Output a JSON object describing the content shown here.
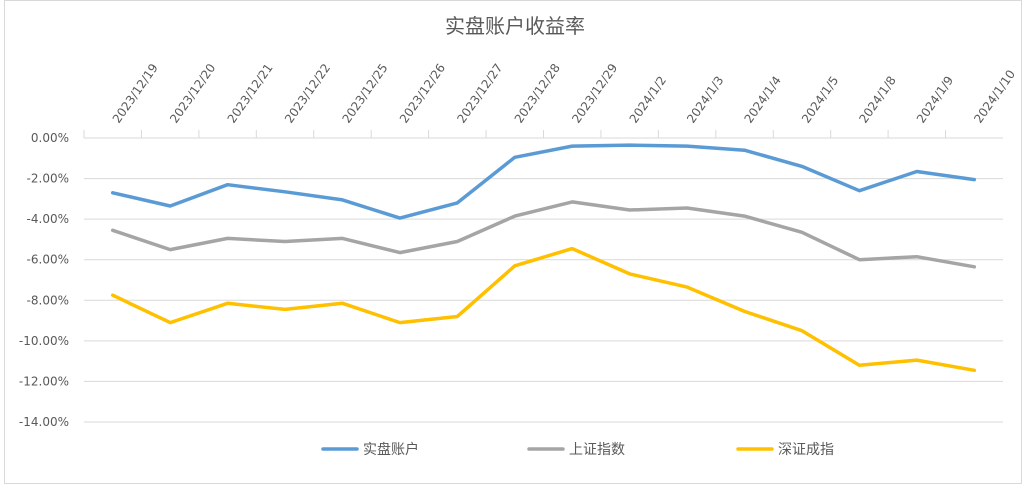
{
  "chart_data": {
    "type": "line",
    "title": "实盘账户收益率",
    "categories": [
      "2023/12/19",
      "2023/12/20",
      "2023/12/21",
      "2023/12/22",
      "2023/12/25",
      "2023/12/26",
      "2023/12/27",
      "2023/12/28",
      "2023/12/29",
      "2024/1/2",
      "2024/1/3",
      "2024/1/4",
      "2024/1/5",
      "2024/1/8",
      "2024/1/9",
      "2024/1/10"
    ],
    "y_ticks": [
      "0.00%",
      "-2.00%",
      "-4.00%",
      "-6.00%",
      "-8.00%",
      "-10.00%",
      "-12.00%",
      "-14.00%"
    ],
    "ylim": [
      -14,
      0
    ],
    "grid": true,
    "legend_position": "bottom",
    "series": [
      {
        "name": "实盘账户",
        "color": "#5b9bd5",
        "values": [
          -2.7,
          -3.35,
          -2.3,
          -2.65,
          -3.05,
          -3.95,
          -3.2,
          -0.95,
          -0.4,
          -0.35,
          -0.4,
          -0.6,
          -1.4,
          -2.6,
          -1.65,
          -2.05
        ]
      },
      {
        "name": "上证指数",
        "color": "#a5a5a5",
        "values": [
          -4.55,
          -5.5,
          -4.95,
          -5.1,
          -4.95,
          -5.65,
          -5.1,
          -3.85,
          -3.15,
          -3.55,
          -3.45,
          -3.85,
          -4.65,
          -6.0,
          -5.85,
          -6.35
        ]
      },
      {
        "name": "深证成指",
        "color": "#ffc000",
        "values": [
          -7.75,
          -9.1,
          -8.15,
          -8.45,
          -8.15,
          -9.1,
          -8.8,
          -6.3,
          -5.45,
          -6.7,
          -7.35,
          -8.55,
          -9.5,
          -11.2,
          -10.95,
          -11.45
        ]
      }
    ]
  }
}
